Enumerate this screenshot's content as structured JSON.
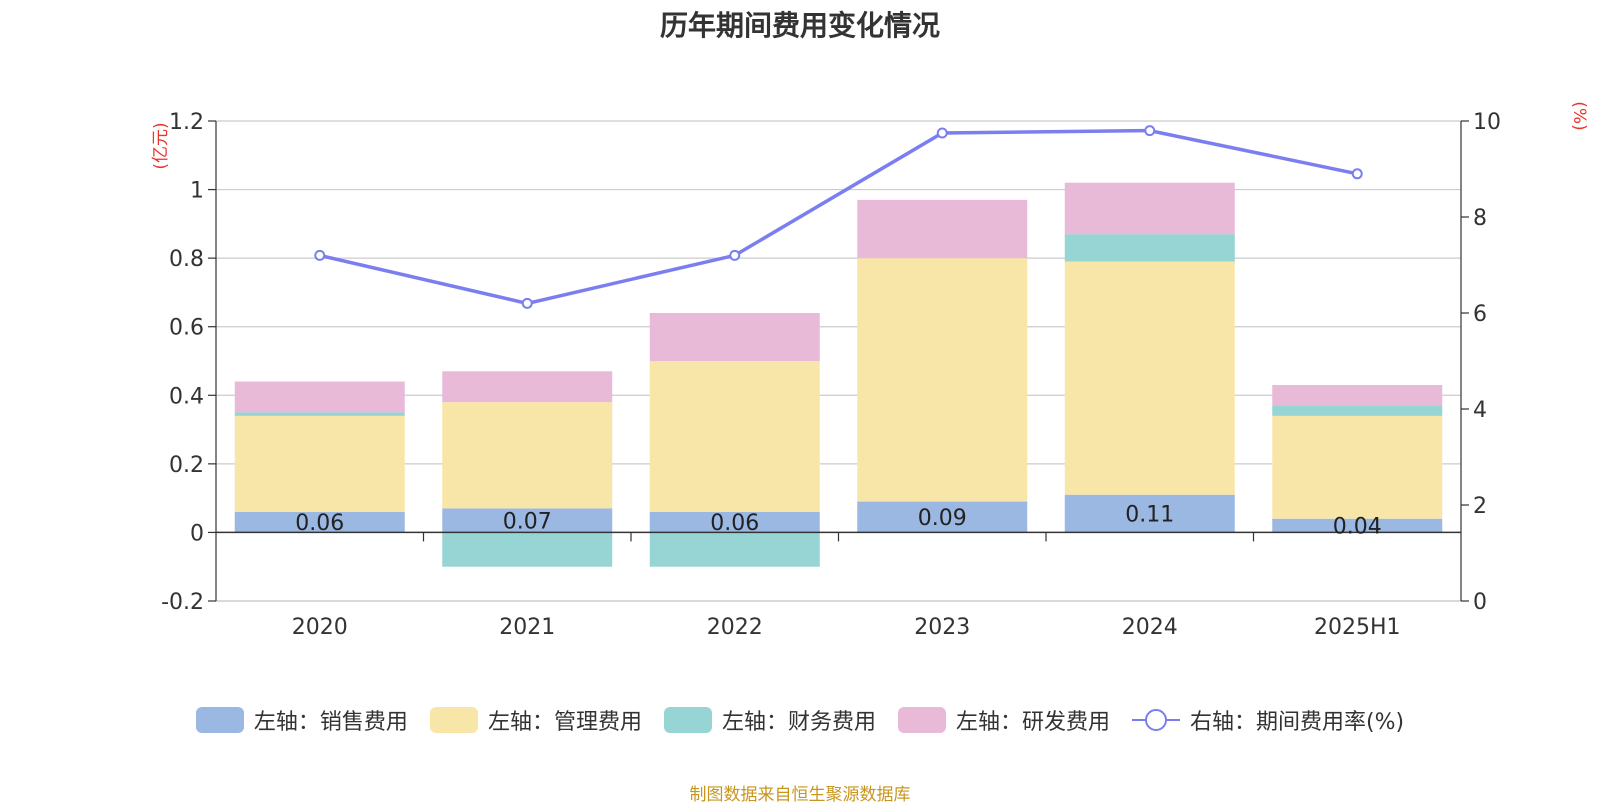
{
  "title": "历年期间费用变化情况",
  "source_note": "制图数据来自恒生聚源数据库",
  "chart_data": {
    "type": "bar",
    "stacked": true,
    "categories": [
      "2020",
      "2021",
      "2022",
      "2023",
      "2024",
      "2025H1"
    ],
    "left_axis": {
      "unit_label": "(亿元)",
      "ylim": [
        -0.2,
        1.2
      ],
      "ticks": [
        -0.2,
        0,
        0.2,
        0.4,
        0.6,
        0.8,
        1,
        1.2
      ],
      "tick_labels": [
        "-0.2",
        "0",
        "0.2",
        "0.4",
        "0.6",
        "0.8",
        "1",
        "1.2"
      ]
    },
    "right_axis": {
      "unit_label": "(%)",
      "ylim": [
        0,
        10
      ],
      "ticks": [
        0,
        2,
        4,
        6,
        8,
        10
      ],
      "tick_labels": [
        "0",
        "2",
        "4",
        "6",
        "8",
        "10"
      ]
    },
    "grid": true,
    "legend_position": "bottom",
    "series": [
      {
        "name": "左轴：销售费用",
        "axis": "left",
        "color": "#9bb8e2",
        "values": [
          0.06,
          0.07,
          0.06,
          0.09,
          0.11,
          0.04
        ],
        "labels": [
          "0.06",
          "0.07",
          "0.06",
          "0.09",
          "0.11",
          "0.04"
        ]
      },
      {
        "name": "左轴：管理费用",
        "axis": "left",
        "color": "#f8e6a8",
        "values": [
          0.28,
          0.31,
          0.44,
          0.71,
          0.68,
          0.3
        ]
      },
      {
        "name": "左轴：财务费用",
        "axis": "left",
        "color": "#97d4d4",
        "values": [
          0.01,
          -0.1,
          -0.1,
          0.0,
          0.08,
          0.03
        ]
      },
      {
        "name": "左轴：研发费用",
        "axis": "left",
        "color": "#e8bad8",
        "values": [
          0.09,
          0.09,
          0.14,
          0.17,
          0.15,
          0.06
        ]
      },
      {
        "name": "右轴：期间费用率(%)",
        "axis": "right",
        "type": "line",
        "color": "#7b7ef0",
        "values": [
          7.2,
          6.2,
          7.2,
          9.75,
          9.8,
          8.9
        ]
      }
    ]
  }
}
